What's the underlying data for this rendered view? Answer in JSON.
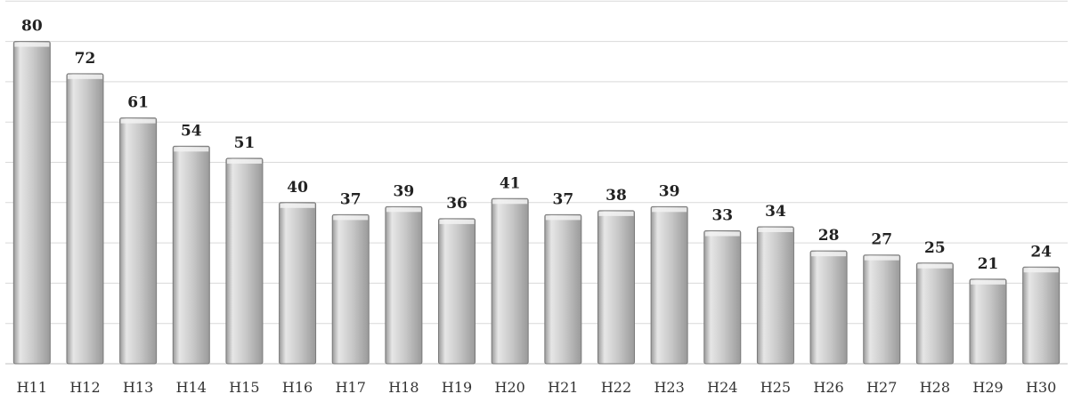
{
  "chart_data": {
    "type": "bar",
    "categories": [
      "H11",
      "H12",
      "H13",
      "H14",
      "H15",
      "H16",
      "H17",
      "H18",
      "H19",
      "H20",
      "H21",
      "H22",
      "H23",
      "H24",
      "H25",
      "H26",
      "H27",
      "H28",
      "H29",
      "H30"
    ],
    "values": [
      80,
      72,
      61,
      54,
      51,
      40,
      37,
      39,
      36,
      41,
      37,
      38,
      39,
      33,
      34,
      28,
      27,
      25,
      21,
      24
    ],
    "ylim": [
      0,
      90
    ],
    "y_gridline_step": 10,
    "grid": true,
    "y_axis_labels_shown": false,
    "data_labels": true,
    "colors": {
      "bar_fill_light": "#e6e6e6",
      "bar_fill_mid": "#c8c8c8",
      "bar_fill_dark": "#9a9a9a",
      "bar_stroke": "#7a7a7a",
      "gridline": "#d9d9d9",
      "axis_line": "#bfbfbf",
      "text": "#222222"
    }
  }
}
